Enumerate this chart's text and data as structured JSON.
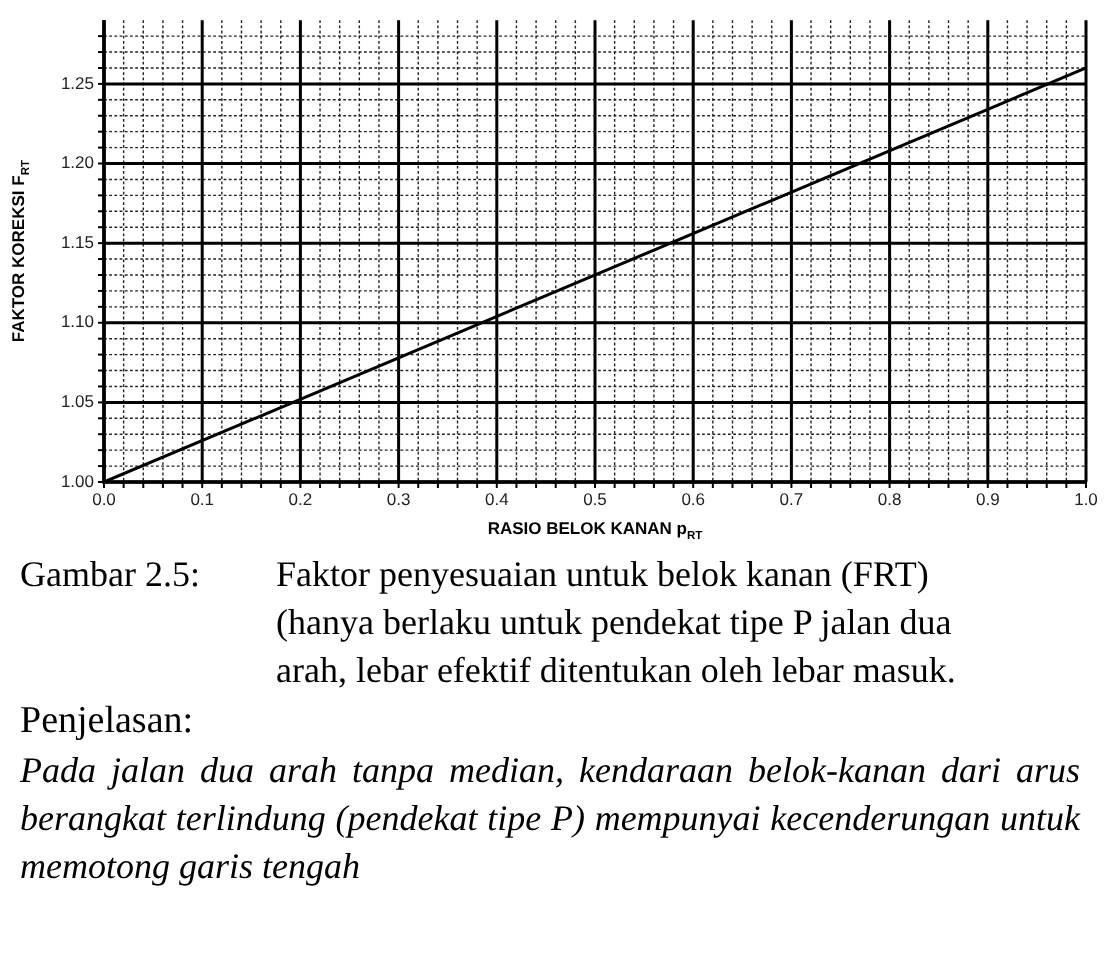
{
  "chart_data": {
    "type": "line",
    "x": [
      0,
      1
    ],
    "series": [
      {
        "color": "#000000",
        "values": [
          1.0,
          1.26
        ]
      }
    ],
    "xlim": [
      0,
      1
    ],
    "ylim": [
      1,
      1.29
    ],
    "xticks": [
      {
        "value": 0,
        "label": "0.0"
      },
      {
        "value": 0.02,
        "label": null
      },
      {
        "value": 0.04,
        "label": null
      },
      {
        "value": 0.06,
        "label": null
      },
      {
        "value": 0.08,
        "label": null
      },
      {
        "value": 0.1,
        "label": "0.1"
      },
      {
        "value": 0.12,
        "label": null
      },
      {
        "value": 0.14,
        "label": null
      },
      {
        "value": 0.16,
        "label": null
      },
      {
        "value": 0.18,
        "label": null
      },
      {
        "value": 0.2,
        "label": "0.2"
      },
      {
        "value": 0.22,
        "label": null
      },
      {
        "value": 0.24,
        "label": null
      },
      {
        "value": 0.26,
        "label": null
      },
      {
        "value": 0.28,
        "label": null
      },
      {
        "value": 0.3,
        "label": "0.3"
      },
      {
        "value": 0.32,
        "label": null
      },
      {
        "value": 0.34,
        "label": null
      },
      {
        "value": 0.36,
        "label": null
      },
      {
        "value": 0.38,
        "label": null
      },
      {
        "value": 0.4,
        "label": "0.4"
      },
      {
        "value": 0.42,
        "label": null
      },
      {
        "value": 0.44,
        "label": null
      },
      {
        "value": 0.46,
        "label": null
      },
      {
        "value": 0.48,
        "label": null
      },
      {
        "value": 0.5,
        "label": "0.5"
      },
      {
        "value": 0.52,
        "label": null
      },
      {
        "value": 0.54,
        "label": null
      },
      {
        "value": 0.56,
        "label": null
      },
      {
        "value": 0.58,
        "label": null
      },
      {
        "value": 0.6,
        "label": "0.6"
      },
      {
        "value": 0.62,
        "label": null
      },
      {
        "value": 0.64,
        "label": null
      },
      {
        "value": 0.66,
        "label": null
      },
      {
        "value": 0.68,
        "label": null
      },
      {
        "value": 0.7,
        "label": "0.7"
      },
      {
        "value": 0.72,
        "label": null
      },
      {
        "value": 0.74,
        "label": null
      },
      {
        "value": 0.76,
        "label": null
      },
      {
        "value": 0.78,
        "label": null
      },
      {
        "value": 0.8,
        "label": "0.8"
      },
      {
        "value": 0.82,
        "label": null
      },
      {
        "value": 0.84,
        "label": null
      },
      {
        "value": 0.86,
        "label": null
      },
      {
        "value": 0.88,
        "label": null
      },
      {
        "value": 0.9,
        "label": "0.9"
      },
      {
        "value": 0.92,
        "label": null
      },
      {
        "value": 0.94,
        "label": null
      },
      {
        "value": 0.96,
        "label": null
      },
      {
        "value": 0.98,
        "label": null
      },
      {
        "value": 1,
        "label": "1.0"
      }
    ],
    "yticks": [
      {
        "value": 1,
        "label": "1.00"
      },
      {
        "value": 1.01,
        "label": null
      },
      {
        "value": 1.02,
        "label": null
      },
      {
        "value": 1.03,
        "label": null
      },
      {
        "value": 1.04,
        "label": null
      },
      {
        "value": 1.05,
        "label": "1.05"
      },
      {
        "value": 1.06,
        "label": null
      },
      {
        "value": 1.07,
        "label": null
      },
      {
        "value": 1.08,
        "label": null
      },
      {
        "value": 1.09,
        "label": null
      },
      {
        "value": 1.1,
        "label": "1.10"
      },
      {
        "value": 1.11,
        "label": null
      },
      {
        "value": 1.12,
        "label": null
      },
      {
        "value": 1.13,
        "label": null
      },
      {
        "value": 1.14,
        "label": null
      },
      {
        "value": 1.15,
        "label": "1.15"
      },
      {
        "value": 1.16,
        "label": null
      },
      {
        "value": 1.17,
        "label": null
      },
      {
        "value": 1.18,
        "label": null
      },
      {
        "value": 1.19,
        "label": null
      },
      {
        "value": 1.2,
        "label": "1.20"
      },
      {
        "value": 1.21,
        "label": null
      },
      {
        "value": 1.22,
        "label": null
      },
      {
        "value": 1.23,
        "label": null
      },
      {
        "value": 1.24,
        "label": null
      },
      {
        "value": 1.25,
        "label": "1.25"
      },
      {
        "value": 1.26,
        "label": null
      },
      {
        "value": 1.27,
        "label": null
      },
      {
        "value": 1.28,
        "label": null
      }
    ],
    "xlabel": "RASIO BELOK KANAN p$_{RT}$",
    "ylabel": "FAKTOR KOREKSI F$_{RT}$",
    "grid": true,
    "marker": "none",
    "line_style": "solid",
    "annotations": [
      "Gambar 2.5:",
      "Faktor penyesuaian untuk belok kanan (FRT) (hanya berlaku untuk pendekat tipe P jalan dua arah, lebar efektif ditentukan oleh lebar masuk.",
      "Penjelasan:",
      "Pada jalan dua arah tanpa median, kendaraan belok-kanan dari arus berangkat terlindung (pendekat tipe P) mempunyai kecenderungan untuk memotong garis tengah"
    ]
  }
}
